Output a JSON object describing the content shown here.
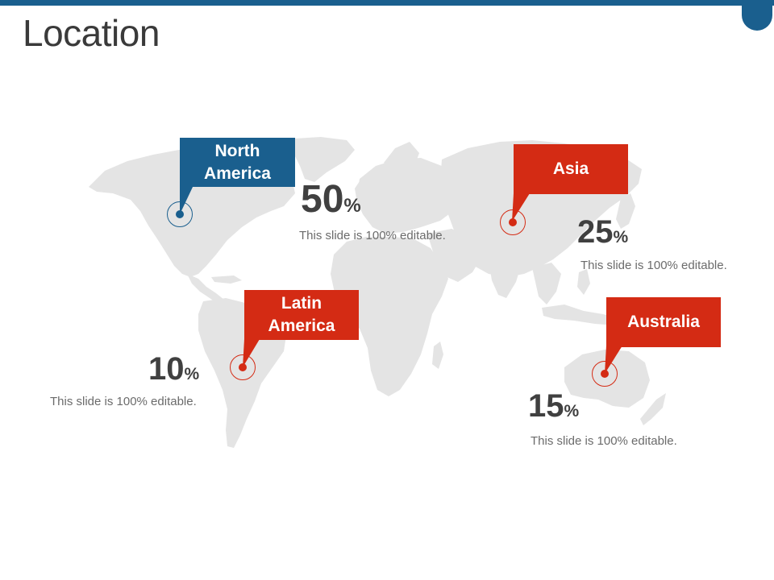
{
  "title": "Location",
  "colors": {
    "blue": "#1a5f8e",
    "red": "#d42b14",
    "map": "#e4e4e4"
  },
  "regions": [
    {
      "name": "North America",
      "line1": "North",
      "line2": "America",
      "value": "50",
      "unit": "%",
      "desc": "This slide is 100% editable.",
      "color": "blue"
    },
    {
      "name": "Asia",
      "line1": "Asia",
      "line2": "",
      "value": "25",
      "unit": "%",
      "desc": "This slide is 100% editable.",
      "color": "red"
    },
    {
      "name": "Latin America",
      "line1": "Latin",
      "line2": "America",
      "value": "10",
      "unit": "%",
      "desc": "This slide is 100% editable.",
      "color": "red"
    },
    {
      "name": "Australia",
      "line1": "Australia",
      "line2": "",
      "value": "15",
      "unit": "%",
      "desc": "This slide is 100% editable.",
      "color": "red"
    }
  ]
}
